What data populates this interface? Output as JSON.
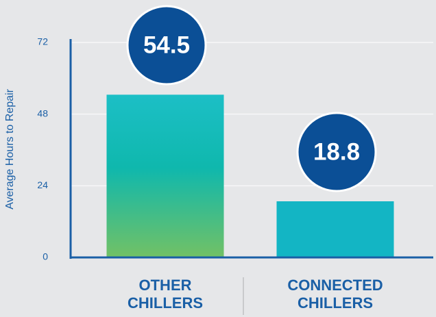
{
  "chart_data": {
    "type": "bar",
    "y_label": "Average Hours to Repair",
    "categories": [
      "OTHER CHILLERS",
      "CONNECTED CHILLERS"
    ],
    "values": [
      54.5,
      18.8
    ],
    "colors": [
      "gradient",
      "#13b5c4"
    ],
    "ylim": [
      0,
      72
    ],
    "yticks": [
      0,
      24,
      48,
      72
    ],
    "grid": true
  }
}
